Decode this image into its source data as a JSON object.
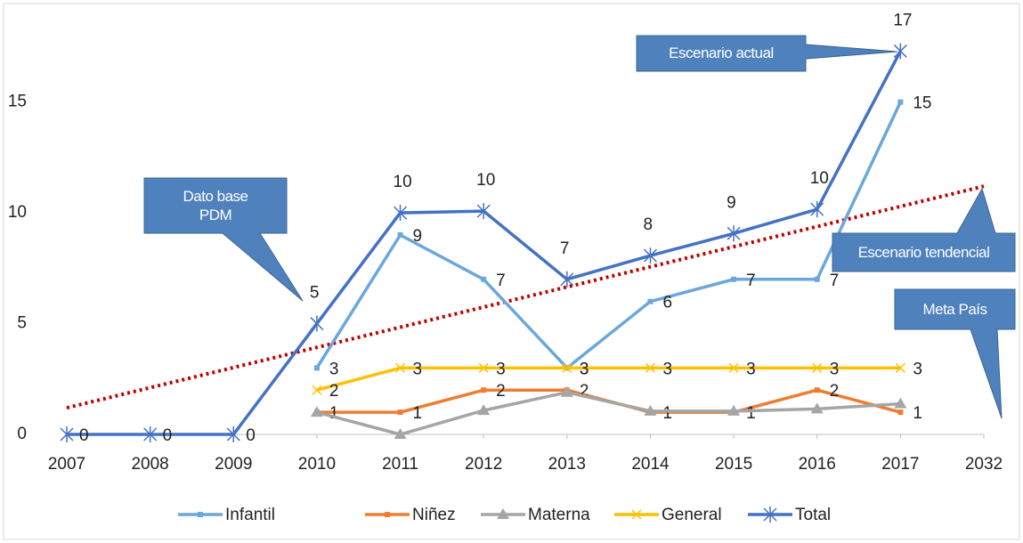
{
  "chart_data": {
    "type": "line",
    "categories": [
      "2007",
      "2008",
      "2009",
      "2010",
      "2011",
      "2012",
      "2013",
      "2014",
      "2015",
      "2016",
      "2017",
      "2032"
    ],
    "ylim": [
      0,
      18
    ],
    "yticks": [
      0,
      5,
      10,
      15
    ],
    "grid": false,
    "series": [
      {
        "name": "Infantil",
        "color": "#6ba7dd",
        "marker": "square",
        "values": [
          null,
          null,
          null,
          3,
          9,
          7,
          3,
          6,
          7,
          7,
          15,
          null
        ]
      },
      {
        "name": "Niñez",
        "color": "#ed7d31",
        "marker": "square",
        "values": [
          null,
          null,
          null,
          1,
          1,
          2,
          2,
          1,
          1,
          2,
          1,
          null
        ]
      },
      {
        "name": "Materna",
        "color": "#a5a5a5",
        "marker": "triangle",
        "values": [
          null,
          null,
          null,
          1,
          0,
          1.08,
          1.9,
          1.05,
          1.05,
          1.15,
          1.38,
          null
        ]
      },
      {
        "name": "General",
        "color": "#ffc000",
        "marker": "x",
        "values": [
          null,
          null,
          null,
          2,
          3,
          3,
          3,
          3,
          3,
          3,
          3,
          null
        ]
      },
      {
        "name": "Total",
        "color": "#4472c4",
        "marker": "star",
        "values": [
          0,
          0,
          0,
          5,
          10,
          10.08,
          7,
          8.07,
          9.07,
          10.16,
          17.3,
          null
        ],
        "value_labels": [
          "0",
          "0",
          "0",
          "5",
          "10",
          "10",
          "7",
          "8",
          "9",
          "10",
          "17",
          null
        ]
      }
    ],
    "trend": {
      "color": "#c00000",
      "values": [
        1.2,
        11.2
      ]
    },
    "annotations": [
      "Escenario actual",
      "Dato base\nPDM",
      "Escenario tendencial",
      "Meta País"
    ],
    "legend": "bottom"
  }
}
